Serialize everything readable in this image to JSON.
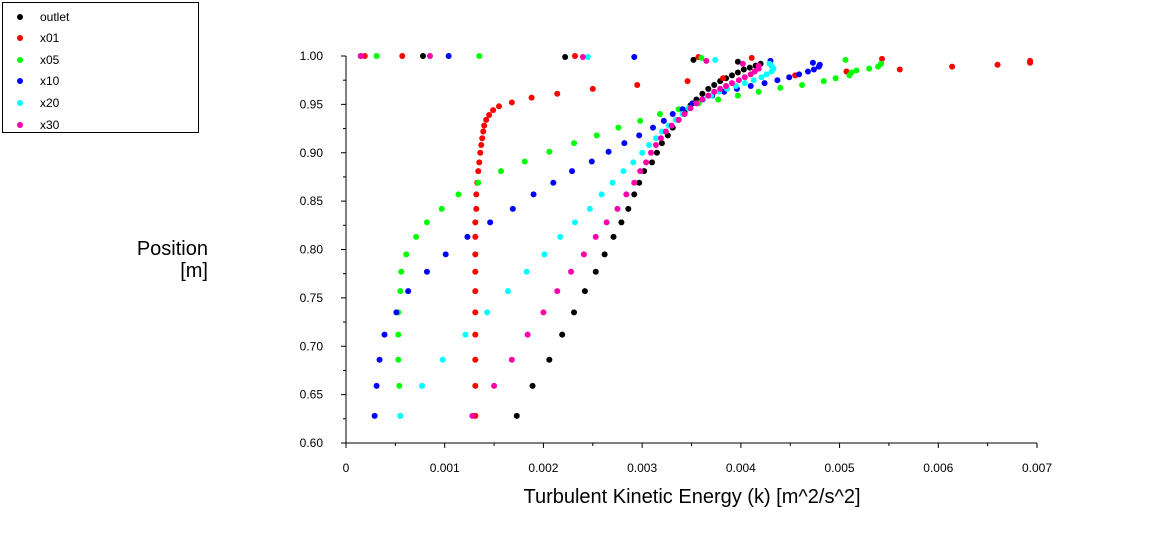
{
  "chart_data": {
    "type": "scatter",
    "title": "",
    "xlabel": "Turbulent Kinetic Energy (k) [m^2/s^2]",
    "ylabel": "Position",
    "ylabel_unit": "[m]",
    "xlim": [
      0,
      0.007
    ],
    "ylim": [
      0.6,
      1.0
    ],
    "xticks": [
      0,
      0.001,
      0.002,
      0.003,
      0.004,
      0.005,
      0.006,
      0.007
    ],
    "xtick_labels": [
      "0",
      "0.001",
      "0.002",
      "0.003",
      "0.004",
      "0.005",
      "0.006",
      "0.007"
    ],
    "yticks": [
      0.6,
      0.65,
      0.7,
      0.75,
      0.8,
      0.85,
      0.9,
      0.95,
      1.0
    ],
    "ytick_labels": [
      "0.60",
      "0.65",
      "0.70",
      "0.75",
      "0.80",
      "0.85",
      "0.90",
      "0.95",
      "1.00"
    ],
    "grid": false,
    "legend_position": "top-left",
    "series": [
      {
        "name": "outlet",
        "color": "#000000",
        "points": [
          [
            0.00173,
            0.628
          ],
          [
            0.00189,
            0.659
          ],
          [
            0.00206,
            0.686
          ],
          [
            0.00219,
            0.712
          ],
          [
            0.00231,
            0.735
          ],
          [
            0.00242,
            0.757
          ],
          [
            0.00253,
            0.777
          ],
          [
            0.00262,
            0.795
          ],
          [
            0.00271,
            0.813
          ],
          [
            0.00279,
            0.828
          ],
          [
            0.00286,
            0.842
          ],
          [
            0.00292,
            0.857
          ],
          [
            0.00297,
            0.869
          ],
          [
            0.00302,
            0.881
          ],
          [
            0.0031,
            0.89
          ],
          [
            0.00315,
            0.9
          ],
          [
            0.0032,
            0.91
          ],
          [
            0.00326,
            0.918
          ],
          [
            0.00331,
            0.926
          ],
          [
            0.00337,
            0.934
          ],
          [
            0.00343,
            0.942
          ],
          [
            0.00349,
            0.949
          ],
          [
            0.00355,
            0.955
          ],
          [
            0.00361,
            0.961
          ],
          [
            0.00367,
            0.966
          ],
          [
            0.00373,
            0.97
          ],
          [
            0.00379,
            0.974
          ],
          [
            0.00385,
            0.977
          ],
          [
            0.00391,
            0.98
          ],
          [
            0.00397,
            0.983
          ],
          [
            0.00403,
            0.986
          ],
          [
            0.00409,
            0.988
          ],
          [
            0.00415,
            0.99
          ],
          [
            0.0042,
            0.992
          ],
          [
            0.00397,
            0.994
          ],
          [
            0.00352,
            0.996
          ],
          [
            0.00222,
            0.999
          ],
          [
            0.00078,
            1.0
          ]
        ]
      },
      {
        "name": "x01",
        "color": "#ff0000",
        "points": [
          [
            0.00131,
            0.628
          ],
          [
            0.00131,
            0.659
          ],
          [
            0.00131,
            0.686
          ],
          [
            0.00131,
            0.712
          ],
          [
            0.00131,
            0.735
          ],
          [
            0.00131,
            0.757
          ],
          [
            0.00131,
            0.777
          ],
          [
            0.00131,
            0.795
          ],
          [
            0.00131,
            0.813
          ],
          [
            0.00131,
            0.828
          ],
          [
            0.00132,
            0.842
          ],
          [
            0.00132,
            0.857
          ],
          [
            0.00133,
            0.869
          ],
          [
            0.00134,
            0.881
          ],
          [
            0.00135,
            0.89
          ],
          [
            0.00136,
            0.9
          ],
          [
            0.00137,
            0.908
          ],
          [
            0.00138,
            0.915
          ],
          [
            0.00139,
            0.922
          ],
          [
            0.0014,
            0.928
          ],
          [
            0.00142,
            0.934
          ],
          [
            0.00145,
            0.939
          ],
          [
            0.00149,
            0.944
          ],
          [
            0.00155,
            0.948
          ],
          [
            0.00168,
            0.952
          ],
          [
            0.00188,
            0.957
          ],
          [
            0.00214,
            0.961
          ],
          [
            0.0025,
            0.966
          ],
          [
            0.00295,
            0.97
          ],
          [
            0.00346,
            0.974
          ],
          [
            0.00382,
            0.977
          ],
          [
            0.00455,
            0.98
          ],
          [
            0.00507,
            0.984
          ],
          [
            0.00561,
            0.986
          ],
          [
            0.00614,
            0.989
          ],
          [
            0.0066,
            0.991
          ],
          [
            0.00693,
            0.993
          ],
          [
            0.00693,
            0.995
          ],
          [
            0.00543,
            0.997
          ],
          [
            0.00411,
            0.998
          ],
          [
            0.00357,
            0.999
          ],
          [
            0.00232,
            1.0
          ],
          [
            0.00057,
            1.0
          ],
          [
            0.00019,
            1.0
          ]
        ]
      },
      {
        "name": "x05",
        "color": "#00ff00",
        "points": [
          [
            0.00055,
            0.628
          ],
          [
            0.00054,
            0.659
          ],
          [
            0.00053,
            0.686
          ],
          [
            0.00053,
            0.712
          ],
          [
            0.00053,
            0.735
          ],
          [
            0.00055,
            0.757
          ],
          [
            0.00056,
            0.777
          ],
          [
            0.00061,
            0.795
          ],
          [
            0.00071,
            0.813
          ],
          [
            0.00082,
            0.828
          ],
          [
            0.00097,
            0.842
          ],
          [
            0.00114,
            0.857
          ],
          [
            0.00134,
            0.869
          ],
          [
            0.00157,
            0.881
          ],
          [
            0.00181,
            0.891
          ],
          [
            0.00206,
            0.901
          ],
          [
            0.00231,
            0.91
          ],
          [
            0.00254,
            0.918
          ],
          [
            0.00276,
            0.926
          ],
          [
            0.00298,
            0.933
          ],
          [
            0.00318,
            0.94
          ],
          [
            0.00337,
            0.945
          ],
          [
            0.00357,
            0.951
          ],
          [
            0.00377,
            0.955
          ],
          [
            0.00397,
            0.959
          ],
          [
            0.00418,
            0.963
          ],
          [
            0.0044,
            0.967
          ],
          [
            0.00462,
            0.97
          ],
          [
            0.00484,
            0.974
          ],
          [
            0.00496,
            0.977
          ],
          [
            0.0051,
            0.98
          ],
          [
            0.00512,
            0.983
          ],
          [
            0.00517,
            0.985
          ],
          [
            0.0053,
            0.987
          ],
          [
            0.00539,
            0.989
          ],
          [
            0.00542,
            0.992
          ],
          [
            0.00506,
            0.996
          ],
          [
            0.0036,
            0.998
          ],
          [
            0.00135,
            1.0
          ],
          [
            0.00031,
            1.0
          ]
        ]
      },
      {
        "name": "x10",
        "color": "#0000ff",
        "points": [
          [
            0.00029,
            0.628
          ],
          [
            0.00031,
            0.659
          ],
          [
            0.00034,
            0.686
          ],
          [
            0.00039,
            0.712
          ],
          [
            0.00051,
            0.735
          ],
          [
            0.00063,
            0.757
          ],
          [
            0.00082,
            0.777
          ],
          [
            0.00101,
            0.795
          ],
          [
            0.00123,
            0.813
          ],
          [
            0.00146,
            0.828
          ],
          [
            0.00169,
            0.842
          ],
          [
            0.0019,
            0.857
          ],
          [
            0.0021,
            0.869
          ],
          [
            0.00229,
            0.881
          ],
          [
            0.00249,
            0.891
          ],
          [
            0.00266,
            0.901
          ],
          [
            0.00282,
            0.91
          ],
          [
            0.00297,
            0.918
          ],
          [
            0.00311,
            0.926
          ],
          [
            0.00322,
            0.933
          ],
          [
            0.00331,
            0.94
          ],
          [
            0.00341,
            0.945
          ],
          [
            0.00351,
            0.951
          ],
          [
            0.00361,
            0.955
          ],
          [
            0.00371,
            0.959
          ],
          [
            0.00383,
            0.963
          ],
          [
            0.00396,
            0.966
          ],
          [
            0.0041,
            0.969
          ],
          [
            0.00424,
            0.972
          ],
          [
            0.00437,
            0.975
          ],
          [
            0.00449,
            0.978
          ],
          [
            0.00459,
            0.981
          ],
          [
            0.00468,
            0.984
          ],
          [
            0.00474,
            0.986
          ],
          [
            0.00479,
            0.989
          ],
          [
            0.0048,
            0.991
          ],
          [
            0.00473,
            0.993
          ],
          [
            0.0043,
            0.995
          ],
          [
            0.00292,
            0.999
          ],
          [
            0.00104,
            1.0
          ],
          [
            0.00015,
            1.0
          ]
        ]
      },
      {
        "name": "x20",
        "color": "#00ffff",
        "points": [
          [
            0.00055,
            0.628
          ],
          [
            0.00077,
            0.659
          ],
          [
            0.00098,
            0.686
          ],
          [
            0.00121,
            0.712
          ],
          [
            0.00143,
            0.735
          ],
          [
            0.00164,
            0.757
          ],
          [
            0.00183,
            0.777
          ],
          [
            0.00201,
            0.795
          ],
          [
            0.00217,
            0.813
          ],
          [
            0.00232,
            0.828
          ],
          [
            0.00247,
            0.842
          ],
          [
            0.00259,
            0.857
          ],
          [
            0.0027,
            0.869
          ],
          [
            0.00281,
            0.881
          ],
          [
            0.00291,
            0.89
          ],
          [
            0.003,
            0.9
          ],
          [
            0.00307,
            0.908
          ],
          [
            0.00314,
            0.915
          ],
          [
            0.0032,
            0.922
          ],
          [
            0.00327,
            0.928
          ],
          [
            0.00334,
            0.934
          ],
          [
            0.00341,
            0.94
          ],
          [
            0.00347,
            0.946
          ],
          [
            0.00355,
            0.951
          ],
          [
            0.00362,
            0.955
          ],
          [
            0.0037,
            0.959
          ],
          [
            0.00378,
            0.963
          ],
          [
            0.00386,
            0.966
          ],
          [
            0.00395,
            0.969
          ],
          [
            0.00404,
            0.972
          ],
          [
            0.00413,
            0.975
          ],
          [
            0.00421,
            0.978
          ],
          [
            0.00426,
            0.981
          ],
          [
            0.00431,
            0.984
          ],
          [
            0.00433,
            0.987
          ],
          [
            0.00431,
            0.99
          ],
          [
            0.00429,
            0.992
          ],
          [
            0.00374,
            0.996
          ],
          [
            0.00245,
            0.999
          ],
          [
            0.00085,
            1.0
          ]
        ]
      },
      {
        "name": "x30",
        "color": "#ff00aa",
        "points": [
          [
            0.00128,
            0.628
          ],
          [
            0.0015,
            0.659
          ],
          [
            0.00168,
            0.686
          ],
          [
            0.00184,
            0.712
          ],
          [
            0.002,
            0.735
          ],
          [
            0.00214,
            0.757
          ],
          [
            0.00228,
            0.777
          ],
          [
            0.00241,
            0.795
          ],
          [
            0.00253,
            0.813
          ],
          [
            0.00264,
            0.828
          ],
          [
            0.00275,
            0.842
          ],
          [
            0.00284,
            0.857
          ],
          [
            0.00292,
            0.869
          ],
          [
            0.00298,
            0.881
          ],
          [
            0.00304,
            0.89
          ],
          [
            0.00309,
            0.9
          ],
          [
            0.00314,
            0.908
          ],
          [
            0.00319,
            0.915
          ],
          [
            0.00324,
            0.922
          ],
          [
            0.0033,
            0.928
          ],
          [
            0.00337,
            0.934
          ],
          [
            0.00343,
            0.94
          ],
          [
            0.00349,
            0.946
          ],
          [
            0.00355,
            0.951
          ],
          [
            0.00361,
            0.955
          ],
          [
            0.00367,
            0.959
          ],
          [
            0.00373,
            0.963
          ],
          [
            0.00379,
            0.966
          ],
          [
            0.00385,
            0.969
          ],
          [
            0.00391,
            0.972
          ],
          [
            0.00398,
            0.975
          ],
          [
            0.00404,
            0.978
          ],
          [
            0.0041,
            0.981
          ],
          [
            0.00414,
            0.984
          ],
          [
            0.00418,
            0.987
          ],
          [
            0.00418,
            0.99
          ],
          [
            0.00402,
            0.992
          ],
          [
            0.00365,
            0.995
          ],
          [
            0.0024,
            0.999
          ],
          [
            0.00085,
            1.0
          ],
          [
            0.00015,
            1.0
          ]
        ]
      }
    ]
  }
}
